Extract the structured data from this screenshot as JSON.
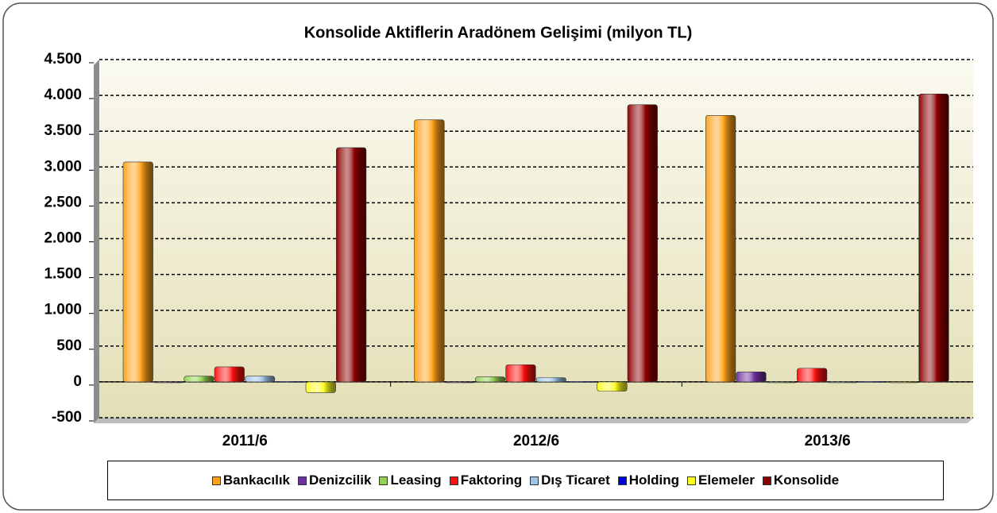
{
  "chart_data": {
    "type": "bar",
    "title": "Konsolide Aktiflerin Aradönem Gelişimi (milyon TL)",
    "categories": [
      "2011/6",
      "2012/6",
      "2013/6"
    ],
    "series": [
      {
        "name": "Bankacılık",
        "color": "#ffa21a",
        "values": [
          3070,
          3660,
          3720
        ]
      },
      {
        "name": "Denizcilik",
        "color": "#7030a0",
        "values": [
          0,
          0,
          140
        ]
      },
      {
        "name": "Leasing",
        "color": "#92d050",
        "values": [
          80,
          70,
          0
        ]
      },
      {
        "name": "Faktoring",
        "color": "#ff1010",
        "values": [
          210,
          240,
          190
        ]
      },
      {
        "name": "Dış Ticaret",
        "color": "#9dc3e6",
        "values": [
          80,
          60,
          0
        ]
      },
      {
        "name": "Holding",
        "color": "#0000e0",
        "values": [
          5,
          5,
          5
        ]
      },
      {
        "name": "Elemeler",
        "color": "#ffff20",
        "values": [
          -150,
          -130,
          0
        ]
      },
      {
        "name": "Konsolide",
        "color": "#8b0000",
        "values": [
          3270,
          3870,
          4020
        ]
      }
    ],
    "ylim": [
      -500,
      4500
    ],
    "yticks": [
      -500,
      0,
      500,
      {
        "value": 1000,
        "label": "1.000"
      },
      {
        "value": 1500,
        "label": "1.500"
      },
      {
        "value": 2000,
        "label": "2.000"
      },
      {
        "value": 2500,
        "label": "2.500"
      },
      {
        "value": 3000,
        "label": "3.000"
      },
      {
        "value": 3500,
        "label": "3.500"
      },
      {
        "value": 4000,
        "label": "4.000"
      },
      {
        "value": 4500,
        "label": "4.500"
      }
    ],
    "grid": true
  }
}
